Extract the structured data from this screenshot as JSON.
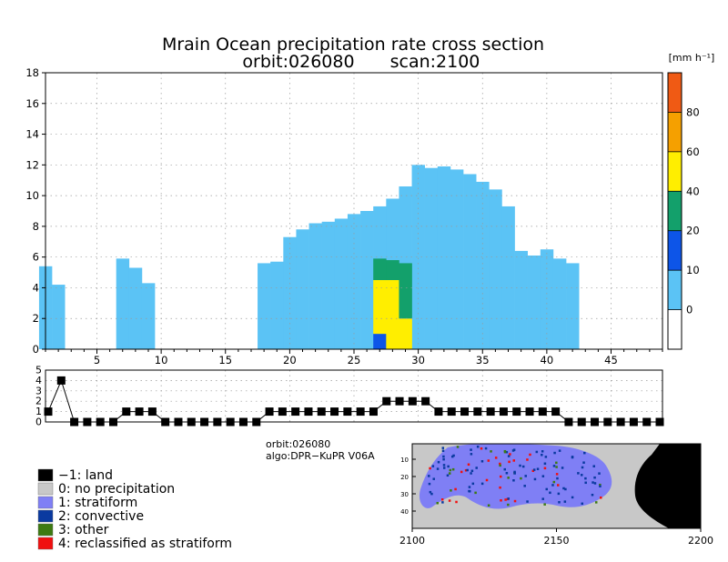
{
  "title": {
    "line1": "Mrain Ocean precipitation rate cross section",
    "line2_orbit": "orbit:026080",
    "line2_scan": "scan:2100"
  },
  "colorbar": {
    "unit": "[mm h⁻¹]",
    "ticks": [
      "0",
      "10",
      "20",
      "40",
      "60",
      "80"
    ],
    "colors": [
      "#ffffff",
      "#5bc3f5",
      "#0d55e8",
      "#13a06b",
      "#ffee00",
      "#f5a000",
      "#f05a14"
    ]
  },
  "info": {
    "orbit": "orbit:026080",
    "algo": "algo:DPR−KuPR V06A"
  },
  "legend": [
    {
      "label": "−1: land",
      "color": "#000000"
    },
    {
      "label": "0: no precipitation",
      "color": "#c8c8c8"
    },
    {
      "label": "1: stratiform",
      "color": "#7f7ff5"
    },
    {
      "label": "2: convective",
      "color": "#0a3aa0"
    },
    {
      "label": "3: other",
      "color": "#3d7a12"
    },
    {
      "label": "4: reclassified as stratiform",
      "color": "#f01010"
    }
  ],
  "map": {
    "x_ticks": [
      "2100",
      "2150",
      "2200"
    ],
    "y_ticks": [
      "10",
      "20",
      "30",
      "40"
    ]
  },
  "chart_data": [
    {
      "type": "heatmap",
      "name": "precipitation rate cross section",
      "x_ticks": [
        5,
        10,
        15,
        20,
        25,
        30,
        35,
        40,
        45
      ],
      "y_ticks": [
        0,
        2,
        4,
        6,
        8,
        10,
        12,
        14,
        16,
        18
      ],
      "xlim": [
        1,
        49
      ],
      "ylim": [
        0,
        18
      ],
      "grid": true,
      "columns_top_km": [
        [
          1,
          5.4
        ],
        [
          2,
          4.2
        ],
        [
          7,
          5.9
        ],
        [
          8,
          5.3
        ],
        [
          9,
          4.3
        ],
        [
          18,
          5.6
        ],
        [
          19,
          5.7
        ],
        [
          20,
          7.3
        ],
        [
          21,
          7.8
        ],
        [
          22,
          8.2
        ],
        [
          23,
          8.3
        ],
        [
          24,
          8.5
        ],
        [
          25,
          8.8
        ],
        [
          26,
          9.0
        ],
        [
          27,
          9.3
        ],
        [
          28,
          9.8
        ],
        [
          29,
          10.6
        ],
        [
          30,
          12.0
        ],
        [
          31,
          11.8
        ],
        [
          32,
          11.9
        ],
        [
          33,
          11.7
        ],
        [
          34,
          11.4
        ],
        [
          35,
          10.9
        ],
        [
          36,
          10.4
        ],
        [
          37,
          9.3
        ],
        [
          38,
          6.4
        ],
        [
          39,
          6.1
        ],
        [
          40,
          6.5
        ],
        [
          41,
          5.9
        ],
        [
          42,
          5.6
        ]
      ],
      "convective_core": {
        "columns": [
          27,
          28,
          29
        ],
        "layers": [
          {
            "col": 27,
            "from_km": 0,
            "to_km": 1.0,
            "rate": "10-20"
          },
          {
            "col": 27,
            "from_km": 1.0,
            "to_km": 4.5,
            "rate": "40-60"
          },
          {
            "col": 27,
            "from_km": 4.5,
            "to_km": 5.9,
            "rate": "20-40"
          },
          {
            "col": 28,
            "from_km": 0,
            "to_km": 4.5,
            "rate": "40-60"
          },
          {
            "col": 28,
            "from_km": 4.5,
            "to_km": 5.8,
            "rate": "20-40"
          },
          {
            "col": 29,
            "from_km": 0,
            "to_km": 2.0,
            "rate": "40-60"
          },
          {
            "col": 29,
            "from_km": 2.0,
            "to_km": 5.6,
            "rate": "20-40"
          }
        ],
        "unit": "mm/h"
      }
    },
    {
      "type": "line",
      "name": "precipitation type flag",
      "y_ticks": [
        0,
        1,
        2,
        3,
        4,
        5
      ],
      "ylim": [
        0,
        5
      ],
      "x": [
        1,
        2,
        3,
        4,
        5,
        6,
        7,
        8,
        9,
        10,
        11,
        12,
        13,
        14,
        15,
        16,
        17,
        18,
        19,
        20,
        21,
        22,
        23,
        24,
        25,
        26,
        27,
        28,
        29,
        30,
        31,
        32,
        33,
        34,
        35,
        36,
        37,
        38,
        39,
        40,
        41,
        42,
        43,
        44,
        45,
        46,
        47,
        48
      ],
      "values": [
        1,
        4,
        0,
        0,
        0,
        0,
        1,
        1,
        1,
        0,
        0,
        0,
        0,
        0,
        0,
        0,
        0,
        1,
        1,
        1,
        1,
        1,
        1,
        1,
        1,
        1,
        2,
        2,
        2,
        2,
        1,
        1,
        1,
        1,
        1,
        1,
        1,
        1,
        1,
        1,
        0,
        0,
        0,
        0,
        0,
        0,
        0,
        0
      ]
    }
  ]
}
